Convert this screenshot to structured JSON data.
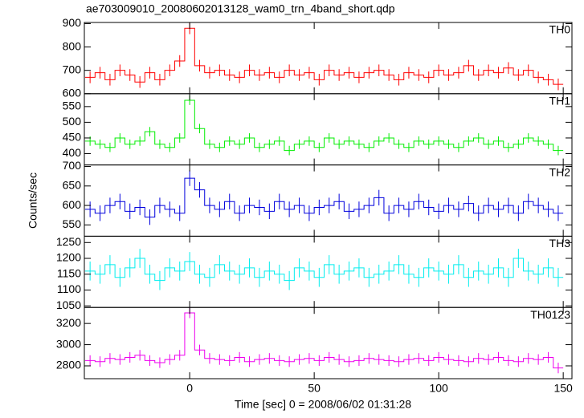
{
  "title": "ae703009010_20080602013128_wam0_trn_4band_short.qdp",
  "x_label": "Time [sec] 0 = 2008/06/02 01:31:28",
  "y_label": "Counts/sec",
  "chart_data": [
    {
      "type": "line",
      "label": "TH0",
      "color": "#ff0000",
      "error": 25,
      "x": [
        -40,
        -36,
        -32,
        -28,
        -24,
        -20,
        -16,
        -12,
        -8,
        -4,
        0,
        4,
        8,
        12,
        16,
        20,
        24,
        28,
        32,
        36,
        40,
        44,
        48,
        52,
        56,
        60,
        64,
        68,
        72,
        76,
        80,
        84,
        88,
        92,
        96,
        100,
        104,
        108,
        112,
        116,
        120,
        124,
        128,
        132,
        136,
        140,
        144,
        148
      ],
      "values": [
        670,
        690,
        660,
        700,
        680,
        650,
        690,
        660,
        700,
        740,
        880,
        720,
        690,
        700,
        680,
        670,
        700,
        680,
        690,
        670,
        700,
        680,
        690,
        660,
        700,
        680,
        690,
        670,
        690,
        700,
        680,
        660,
        690,
        680,
        670,
        700,
        680,
        690,
        720,
        680,
        700,
        690,
        710,
        680,
        700,
        670,
        660,
        640
      ],
      "xlim": [
        -42.3,
        153.5
      ],
      "xticks": [
        0,
        50,
        100,
        150
      ],
      "ylim": [
        600,
        905
      ],
      "yticks": [
        600,
        700,
        800,
        900
      ],
      "show_xtick_labels": false
    },
    {
      "type": "line",
      "label": "TH1",
      "color": "#00ee00",
      "error": 15,
      "x": [
        -40,
        -36,
        -32,
        -28,
        -24,
        -20,
        -16,
        -12,
        -8,
        -4,
        0,
        4,
        8,
        12,
        16,
        20,
        24,
        28,
        32,
        36,
        40,
        44,
        48,
        52,
        56,
        60,
        64,
        68,
        72,
        76,
        80,
        84,
        88,
        92,
        96,
        100,
        104,
        108,
        112,
        116,
        120,
        124,
        128,
        132,
        136,
        140,
        144,
        148
      ],
      "values": [
        440,
        430,
        420,
        450,
        430,
        440,
        470,
        430,
        420,
        450,
        570,
        480,
        430,
        420,
        440,
        430,
        450,
        420,
        430,
        440,
        410,
        430,
        440,
        420,
        450,
        430,
        440,
        430,
        420,
        440,
        450,
        430,
        420,
        440,
        430,
        440,
        430,
        420,
        440,
        450,
        430,
        440,
        420,
        430,
        450,
        440,
        430,
        410
      ],
      "xlim": [
        -42.3,
        153.5
      ],
      "xticks": [
        0,
        50,
        100,
        150
      ],
      "ylim": [
        364,
        591
      ],
      "yticks": [
        400,
        450,
        500,
        550
      ],
      "show_xtick_labels": false
    },
    {
      "type": "line",
      "label": "TH2",
      "color": "#0000dd",
      "error": 20,
      "x": [
        -40,
        -36,
        -32,
        -28,
        -24,
        -20,
        -16,
        -12,
        -8,
        -4,
        0,
        4,
        8,
        12,
        16,
        20,
        24,
        28,
        32,
        36,
        40,
        44,
        48,
        52,
        56,
        60,
        64,
        68,
        72,
        76,
        80,
        84,
        88,
        92,
        96,
        100,
        104,
        108,
        112,
        116,
        120,
        124,
        128,
        132,
        136,
        140,
        144,
        148
      ],
      "values": [
        590,
        580,
        600,
        610,
        585,
        595,
        570,
        600,
        590,
        580,
        670,
        640,
        600,
        590,
        610,
        580,
        600,
        595,
        585,
        610,
        590,
        600,
        580,
        595,
        600,
        610,
        585,
        590,
        600,
        620,
        580,
        600,
        590,
        610,
        595,
        585,
        600,
        590,
        605,
        580,
        600,
        590,
        600,
        580,
        610,
        600,
        590,
        580
      ],
      "xlim": [
        -42.3,
        153.5
      ],
      "xticks": [
        0,
        50,
        100,
        150
      ],
      "ylim": [
        521,
        704
      ],
      "yticks": [
        550,
        600,
        650,
        700
      ],
      "show_xtick_labels": false
    },
    {
      "type": "line",
      "label": "TH3",
      "color": "#00eeee",
      "error": 30,
      "x": [
        -40,
        -36,
        -32,
        -28,
        -24,
        -20,
        -16,
        -12,
        -8,
        -4,
        0,
        4,
        8,
        12,
        16,
        20,
        24,
        28,
        32,
        36,
        40,
        44,
        48,
        52,
        56,
        60,
        64,
        68,
        72,
        76,
        80,
        84,
        88,
        92,
        96,
        100,
        104,
        108,
        112,
        116,
        120,
        124,
        128,
        132,
        136,
        140,
        144,
        148
      ],
      "values": [
        1160,
        1150,
        1180,
        1140,
        1170,
        1200,
        1150,
        1130,
        1170,
        1160,
        1190,
        1150,
        1140,
        1180,
        1160,
        1150,
        1170,
        1140,
        1160,
        1150,
        1130,
        1170,
        1160,
        1140,
        1180,
        1150,
        1160,
        1170,
        1140,
        1150,
        1160,
        1180,
        1150,
        1140,
        1170,
        1160,
        1150,
        1180,
        1140,
        1160,
        1150,
        1170,
        1140,
        1200,
        1160,
        1150,
        1170,
        1140
      ],
      "xlim": [
        -42.3,
        153.5
      ],
      "xticks": [
        0,
        50,
        100,
        150
      ],
      "ylim": [
        1045,
        1270
      ],
      "yticks": [
        1050,
        1100,
        1150,
        1200,
        1250
      ],
      "show_xtick_labels": false
    },
    {
      "type": "line",
      "label": "TH0123",
      "color": "#ee00ee",
      "error": 50,
      "x": [
        -40,
        -36,
        -32,
        -28,
        -24,
        -20,
        -16,
        -12,
        -8,
        -4,
        0,
        4,
        8,
        12,
        16,
        20,
        24,
        28,
        32,
        36,
        40,
        44,
        48,
        52,
        56,
        60,
        64,
        68,
        72,
        76,
        80,
        84,
        88,
        92,
        96,
        100,
        104,
        108,
        112,
        116,
        120,
        124,
        128,
        132,
        136,
        140,
        144,
        148
      ],
      "values": [
        2850,
        2840,
        2870,
        2860,
        2880,
        2900,
        2850,
        2830,
        2860,
        2900,
        3300,
        2950,
        2870,
        2860,
        2850,
        2880,
        2840,
        2860,
        2870,
        2850,
        2840,
        2860,
        2870,
        2850,
        2880,
        2860,
        2840,
        2850,
        2870,
        2860,
        2850,
        2840,
        2860,
        2870,
        2850,
        2880,
        2860,
        2850,
        2840,
        2870,
        2860,
        2880,
        2850,
        2840,
        2870,
        2860,
        2880,
        2780
      ],
      "xlim": [
        -42.3,
        153.5
      ],
      "xticks": [
        0,
        50,
        100,
        150
      ],
      "ylim": [
        2679,
        3351
      ],
      "yticks": [
        2800,
        3000,
        3200
      ],
      "show_xtick_labels": true
    }
  ]
}
